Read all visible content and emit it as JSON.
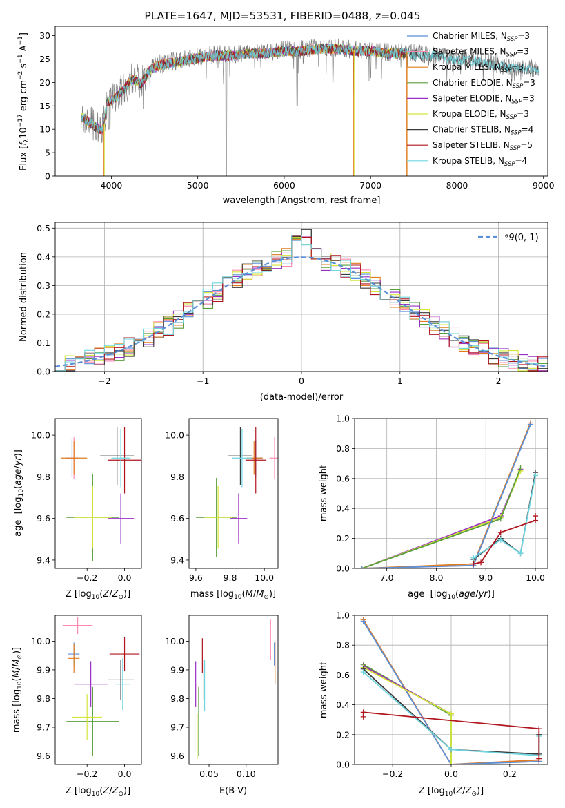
{
  "figure_title": "PLATE=1647, MJD=53531, FIBERID=0488, z=0.045",
  "colors": {
    "chabrier_miles": "#5b8fd6",
    "salpeter_miles": "#ff8ab0",
    "kroupa_miles": "#e07b1f",
    "chabrier_elodie": "#5a9e3c",
    "salpeter_elodie": "#9a2fc4",
    "kroupa_elodie": "#d4e63a",
    "chabrier_stelib": "#3a3a3a",
    "salpeter_stelib": "#b0151e",
    "kroupa_stelib": "#6fd6e0"
  },
  "chart_data": [
    {
      "id": "spectrum",
      "type": "line",
      "title": "PLATE=1647, MJD=53531, FIBERID=0488, z=0.045",
      "xlabel": "wavelength [Angstrom, rest frame]",
      "ylabel": "Flux [f_λ 10^-17 erg cm^-2 s^-1 A^-1]",
      "xlim": [
        3350,
        9050
      ],
      "ylim": [
        0,
        32
      ],
      "xticks": [
        4000,
        5000,
        6000,
        7000,
        8000,
        9000
      ],
      "yticks": [
        0,
        5,
        10,
        15,
        20,
        25,
        30
      ],
      "legend_position": "right",
      "legend": [
        {
          "key": "chabrier_miles",
          "base": "Chabrier MILES, N",
          "sub": "SSP",
          "tail": "=3"
        },
        {
          "key": "salpeter_miles",
          "base": "Salpeter MILES, N",
          "sub": "SSP",
          "tail": "=3"
        },
        {
          "key": "kroupa_miles",
          "base": "Kroupa MILES, N",
          "sub": "SSP",
          "tail": "=3"
        },
        {
          "key": "chabrier_elodie",
          "base": "Chabrier ELODIE, N",
          "sub": "SSP",
          "tail": "=3"
        },
        {
          "key": "salpeter_elodie",
          "base": "Salpeter ELODIE, N",
          "sub": "SSP",
          "tail": "=3"
        },
        {
          "key": "kroupa_elodie",
          "base": "Kroupa ELODIE, N",
          "sub": "SSP",
          "tail": "=3"
        },
        {
          "key": "chabrier_stelib",
          "base": "Chabrier STELIB, N",
          "sub": "SSP",
          "tail": "=4"
        },
        {
          "key": "salpeter_stelib",
          "base": "Salpeter STELIB, N",
          "sub": "SSP",
          "tail": "=5"
        },
        {
          "key": "kroupa_stelib",
          "base": "Kroupa STELIB, N",
          "sub": "SSP",
          "tail": "=4"
        }
      ],
      "data_anchors": [
        [
          3650,
          13
        ],
        [
          3800,
          11
        ],
        [
          3900,
          10
        ],
        [
          3950,
          16
        ],
        [
          4050,
          17
        ],
        [
          4150,
          19
        ],
        [
          4250,
          21
        ],
        [
          4350,
          20
        ],
        [
          4450,
          23
        ],
        [
          4550,
          24
        ],
        [
          4700,
          24.5
        ],
        [
          4860,
          25
        ],
        [
          5000,
          25.5
        ],
        [
          5200,
          26
        ],
        [
          5400,
          26
        ],
        [
          5600,
          26.5
        ],
        [
          5800,
          26.5
        ],
        [
          6000,
          27
        ],
        [
          6200,
          27
        ],
        [
          6400,
          27.5
        ],
        [
          6600,
          27.5
        ],
        [
          6800,
          27
        ],
        [
          7000,
          27
        ],
        [
          7200,
          26.5
        ],
        [
          7400,
          26.5
        ],
        [
          7600,
          26
        ],
        [
          7800,
          26
        ],
        [
          8000,
          25
        ],
        [
          8200,
          25
        ],
        [
          8400,
          24
        ],
        [
          8600,
          23.5
        ],
        [
          8800,
          23
        ],
        [
          8950,
          23
        ]
      ],
      "model_end_wavelength": 7420,
      "data_dips": [
        [
          3934,
          11
        ],
        [
          3969,
          10
        ],
        [
          5330,
          0
        ],
        [
          6150,
          15
        ],
        [
          6564,
          20
        ],
        [
          6800,
          18
        ],
        [
          7000,
          21
        ]
      ],
      "model_drops": [
        [
          3910,
          "kroupa_miles"
        ],
        [
          6800,
          "kroupa_miles"
        ],
        [
          7420,
          "kroupa_miles"
        ]
      ]
    },
    {
      "id": "residuals",
      "type": "histogram",
      "xlabel": "(data-model)/error",
      "ylabel": "Normed distribution",
      "xlim": [
        -2.5,
        2.5
      ],
      "ylim": [
        0,
        0.52
      ],
      "xticks": [
        -2,
        -1,
        0,
        1,
        2
      ],
      "yticks": [
        0.0,
        0.1,
        0.2,
        0.3,
        0.4,
        0.5
      ],
      "grid": true,
      "bins": {
        "start": -2.5,
        "width": 0.1,
        "count": 50
      },
      "legend_label": "N(0,1)",
      "legend_position": "top-right",
      "reference_curve": "gaussian mean 0 sigma 1"
    },
    {
      "id": "age_vs_Z",
      "type": "errorbar",
      "xlabel": "Z [log10(Z/Z⊙)]",
      "ylabel": "age [log10(age/yr)]",
      "xlim": [
        -0.37,
        0.09
      ],
      "ylim": [
        9.36,
        10.08
      ],
      "xticks": [
        -0.2,
        0.0
      ],
      "yticks": [
        9.4,
        9.6,
        9.8,
        10.0
      ],
      "points": [
        {
          "key": "chabrier_miles",
          "x": -0.28,
          "y": 9.89,
          "xerr": 0.03,
          "yerr": 0.09
        },
        {
          "key": "salpeter_miles",
          "x": -0.27,
          "y": 9.89,
          "xerr": 0.03,
          "yerr": 0.1
        },
        {
          "key": "kroupa_miles",
          "x": -0.27,
          "y": 9.89,
          "xerr": 0.07,
          "yerr": 0.08
        },
        {
          "key": "chabrier_elodie",
          "x": -0.17,
          "y": 9.605,
          "xerr": 0.14,
          "yerr": 0.21
        },
        {
          "key": "salpeter_elodie",
          "x": -0.02,
          "y": 9.6,
          "xerr": 0.07,
          "yerr": 0.12
        },
        {
          "key": "kroupa_elodie",
          "x": -0.17,
          "y": 9.605,
          "xerr": 0.1,
          "yerr": 0.15
        },
        {
          "key": "chabrier_stelib",
          "x": -0.04,
          "y": 9.9,
          "xerr": 0.09,
          "yerr": 0.14
        },
        {
          "key": "salpeter_stelib",
          "x": 0.0,
          "y": 9.88,
          "xerr": 0.09,
          "yerr": 0.16
        },
        {
          "key": "kroupa_stelib",
          "x": -0.02,
          "y": 9.89,
          "xerr": 0.05,
          "yerr": 0.14
        }
      ]
    },
    {
      "id": "age_vs_mass",
      "type": "errorbar",
      "xlabel": "mass [log10(M/M⊙)]",
      "ylabel": "",
      "xlim": [
        9.56,
        10.08
      ],
      "ylim": [
        9.36,
        10.08
      ],
      "xticks": [
        9.6,
        9.8,
        10.0
      ],
      "yticks": [
        9.4,
        9.6,
        9.8,
        10.0
      ],
      "points": [
        {
          "key": "chabrier_miles",
          "x": 9.95,
          "y": 9.89,
          "xerr": 0.04,
          "yerr": 0.09
        },
        {
          "key": "salpeter_miles",
          "x": 10.06,
          "y": 9.89,
          "xerr": 0.03,
          "yerr": 0.1
        },
        {
          "key": "kroupa_miles",
          "x": 9.94,
          "y": 9.89,
          "xerr": 0.05,
          "yerr": 0.08
        },
        {
          "key": "chabrier_elodie",
          "x": 9.72,
          "y": 9.605,
          "xerr": 0.12,
          "yerr": 0.19
        },
        {
          "key": "salpeter_elodie",
          "x": 9.85,
          "y": 9.6,
          "xerr": 0.05,
          "yerr": 0.12
        },
        {
          "key": "kroupa_elodie",
          "x": 9.73,
          "y": 9.605,
          "xerr": 0.08,
          "yerr": 0.15
        },
        {
          "key": "chabrier_stelib",
          "x": 9.86,
          "y": 9.9,
          "xerr": 0.07,
          "yerr": 0.14
        },
        {
          "key": "salpeter_stelib",
          "x": 9.95,
          "y": 9.88,
          "xerr": 0.06,
          "yerr": 0.16
        },
        {
          "key": "kroupa_stelib",
          "x": 9.87,
          "y": 9.89,
          "xerr": 0.06,
          "yerr": 0.14
        }
      ]
    },
    {
      "id": "weight_vs_age",
      "type": "line",
      "xlabel": "age [log10(age/yr)]",
      "ylabel": "mass weight",
      "xlim": [
        6.35,
        10.25
      ],
      "ylim": [
        0,
        1.0
      ],
      "xticks": [
        7,
        8,
        9,
        10
      ],
      "yticks": [
        0.0,
        0.2,
        0.4,
        0.6,
        0.8,
        1.0
      ],
      "grid": true,
      "series": [
        {
          "key": "salpeter_elodie",
          "x": [
            6.5,
            9.3,
            9.7
          ],
          "y": [
            0.0,
            0.35,
            0.66
          ]
        },
        {
          "key": "kroupa_elodie",
          "x": [
            6.5,
            9.3,
            9.7
          ],
          "y": [
            0.0,
            0.34,
            0.65
          ]
        },
        {
          "key": "chabrier_elodie",
          "x": [
            6.5,
            9.3,
            9.7
          ],
          "y": [
            0.0,
            0.33,
            0.67
          ]
        },
        {
          "key": "salpeter_miles",
          "x": [
            6.5,
            8.75,
            9.9
          ],
          "y": [
            0.0,
            0.02,
            0.97
          ]
        },
        {
          "key": "kroupa_miles",
          "x": [
            6.5,
            8.75,
            9.9
          ],
          "y": [
            0.0,
            0.03,
            0.97
          ]
        },
        {
          "key": "chabrier_miles",
          "x": [
            6.5,
            8.75,
            9.9
          ],
          "y": [
            0.0,
            0.02,
            0.96
          ]
        },
        {
          "key": "chabrier_stelib",
          "x": [
            8.75,
            9.3,
            9.7,
            10.0
          ],
          "y": [
            0.06,
            0.2,
            0.1,
            0.64
          ]
        },
        {
          "key": "kroupa_stelib",
          "x": [
            8.75,
            9.3,
            9.7,
            10.0
          ],
          "y": [
            0.07,
            0.19,
            0.1,
            0.62
          ]
        },
        {
          "key": "salpeter_stelib",
          "x": [
            8.75,
            8.9,
            9.3,
            10.0,
            10.0
          ],
          "y": [
            0.03,
            0.04,
            0.24,
            0.32,
            0.35
          ]
        }
      ]
    },
    {
      "id": "mass_vs_Z",
      "type": "errorbar",
      "xlabel": "Z [log10(Z/Z⊙)]",
      "ylabel": "mass [log10(M/M⊙)]",
      "xlim": [
        -0.37,
        0.09
      ],
      "ylim": [
        9.57,
        10.09
      ],
      "xticks": [
        -0.2,
        0.0
      ],
      "yticks": [
        9.6,
        9.7,
        9.8,
        9.9,
        10.0
      ],
      "points": [
        {
          "key": "chabrier_miles",
          "x": -0.27,
          "y": 9.955,
          "xerr": 0.03,
          "yerr": 0.04
        },
        {
          "key": "salpeter_miles",
          "x": -0.25,
          "y": 10.055,
          "xerr": 0.08,
          "yerr": 0.03
        },
        {
          "key": "kroupa_miles",
          "x": -0.27,
          "y": 9.94,
          "xerr": 0.03,
          "yerr": 0.05
        },
        {
          "key": "chabrier_elodie",
          "x": -0.17,
          "y": 9.72,
          "xerr": 0.14,
          "yerr": 0.12
        },
        {
          "key": "salpeter_elodie",
          "x": -0.18,
          "y": 9.85,
          "xerr": 0.09,
          "yerr": 0.08
        },
        {
          "key": "kroupa_elodie",
          "x": -0.2,
          "y": 9.735,
          "xerr": 0.08,
          "yerr": 0.08
        },
        {
          "key": "chabrier_stelib",
          "x": -0.02,
          "y": 9.865,
          "xerr": 0.07,
          "yerr": 0.07
        },
        {
          "key": "salpeter_stelib",
          "x": 0.0,
          "y": 9.955,
          "xerr": 0.08,
          "yerr": 0.06
        },
        {
          "key": "kroupa_stelib",
          "x": -0.01,
          "y": 9.85,
          "xerr": 0.04,
          "yerr": 0.09
        }
      ]
    },
    {
      "id": "mass_vs_ebv",
      "type": "errorbar",
      "xlabel": "E(B-V)",
      "ylabel": "",
      "xlim": [
        0.023,
        0.143
      ],
      "ylim": [
        9.57,
        10.09
      ],
      "xticks": [
        0.05,
        0.1
      ],
      "xtick_labels": [
        "0.05",
        "0.10"
      ],
      "yticks": [
        9.6,
        9.7,
        9.8,
        9.9,
        10.0
      ],
      "points": [
        {
          "key": "chabrier_miles",
          "x": 0.138,
          "y": 9.955,
          "yerr": 0.04
        },
        {
          "key": "salpeter_miles",
          "x": 0.133,
          "y": 10.005,
          "yerr": 0.07
        },
        {
          "key": "kroupa_miles",
          "x": 0.139,
          "y": 9.925,
          "yerr": 0.075
        },
        {
          "key": "chabrier_elodie",
          "x": 0.036,
          "y": 9.72,
          "yerr": 0.12
        },
        {
          "key": "salpeter_elodie",
          "x": 0.032,
          "y": 9.85,
          "yerr": 0.08
        },
        {
          "key": "kroupa_elodie",
          "x": 0.034,
          "y": 9.67,
          "yerr": 0.08
        },
        {
          "key": "chabrier_stelib",
          "x": 0.043,
          "y": 9.865,
          "yerr": 0.07
        },
        {
          "key": "salpeter_stelib",
          "x": 0.041,
          "y": 9.95,
          "yerr": 0.06
        },
        {
          "key": "kroupa_stelib",
          "x": 0.044,
          "y": 9.845,
          "yerr": 0.09
        }
      ]
    },
    {
      "id": "weight_vs_Z",
      "type": "line",
      "xlabel": "Z [log10(Z/Z⊙)]",
      "ylabel": "mass weight",
      "xlim": [
        -0.33,
        0.33
      ],
      "ylim": [
        0,
        1.0
      ],
      "xticks": [
        -0.2,
        0.0,
        0.2
      ],
      "yticks": [
        0.0,
        0.2,
        0.4,
        0.6,
        0.8,
        1.0
      ],
      "grid": true,
      "series": [
        {
          "key": "salpeter_miles",
          "x": [
            -0.3,
            0.0,
            0.3
          ],
          "y": [
            0.97,
            0.0,
            0.03
          ]
        },
        {
          "key": "kroupa_miles",
          "x": [
            -0.3,
            0.0,
            0.3
          ],
          "y": [
            0.97,
            0.0,
            0.03
          ]
        },
        {
          "key": "chabrier_miles",
          "x": [
            -0.3,
            0.0,
            0.3
          ],
          "y": [
            0.96,
            0.0,
            0.02
          ]
        },
        {
          "key": "chabrier_elodie",
          "x": [
            -0.3,
            0.0,
            0.0
          ],
          "y": [
            0.67,
            0.33,
            0.0
          ]
        },
        {
          "key": "salpeter_elodie",
          "x": [
            -0.3,
            0.0
          ],
          "y": [
            0.66,
            0.34
          ]
        },
        {
          "key": "kroupa_elodie",
          "x": [
            -0.3,
            0.0,
            0.0
          ],
          "y": [
            0.65,
            0.34,
            0.0
          ]
        },
        {
          "key": "chabrier_stelib",
          "x": [
            -0.3,
            0.0,
            0.3,
            0.3
          ],
          "y": [
            0.64,
            0.1,
            0.07,
            0.2
          ]
        },
        {
          "key": "kroupa_stelib",
          "x": [
            -0.3,
            0.0,
            0.3,
            0.3
          ],
          "y": [
            0.62,
            0.1,
            0.06,
            0.19
          ]
        },
        {
          "key": "salpeter_stelib",
          "x": [
            -0.3,
            -0.3,
            0.3,
            0.3,
            0.3
          ],
          "y": [
            0.32,
            0.35,
            0.24,
            0.04,
            0.03
          ]
        }
      ]
    }
  ]
}
